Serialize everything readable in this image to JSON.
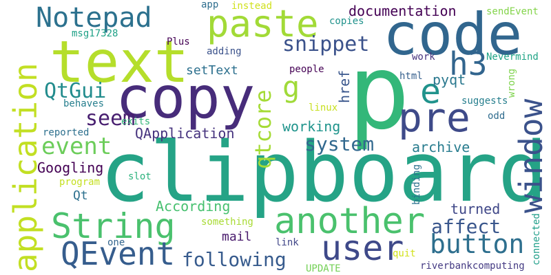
{
  "words": [
    {
      "text": "clipboard",
      "color": "#25a386"
    },
    {
      "text": "p",
      "color": "#33b779"
    },
    {
      "text": "code",
      "color": "#31668e"
    },
    {
      "text": "copy",
      "color": "#472c7a"
    },
    {
      "text": "text",
      "color": "#b5de2b"
    },
    {
      "text": "Notepad",
      "color": "#2c718e"
    },
    {
      "text": "paste",
      "color": "#a2da37"
    },
    {
      "text": "pre",
      "color": "#3e4a89"
    },
    {
      "text": "window",
      "color": "#3b528b"
    },
    {
      "text": "e",
      "color": "#20938c"
    },
    {
      "text": "application",
      "color": "#c2df23"
    },
    {
      "text": "String",
      "color": "#4ac16d"
    },
    {
      "text": "another",
      "color": "#4ac16d"
    },
    {
      "text": "user",
      "color": "#3e4989"
    },
    {
      "text": "button",
      "color": "#2e6f8e"
    },
    {
      "text": "QEvent",
      "color": "#365d8d"
    },
    {
      "text": "h3",
      "color": "#32658e"
    },
    {
      "text": "qtcore",
      "color": "#a5db36"
    },
    {
      "text": "g",
      "color": "#a0da39"
    },
    {
      "text": "snippet",
      "color": "#3b528b"
    },
    {
      "text": "event",
      "color": "#6ccd5a"
    },
    {
      "text": "seem",
      "color": "#481f70"
    },
    {
      "text": "QtGui",
      "color": "#228c8d"
    },
    {
      "text": "pyqt",
      "color": "#2a788e"
    },
    {
      "text": "setText",
      "color": "#2d708e"
    },
    {
      "text": "href",
      "color": "#39568c"
    },
    {
      "text": "system",
      "color": "#31688e"
    },
    {
      "text": "archive",
      "color": "#287c8e"
    },
    {
      "text": "working",
      "color": "#1f948c"
    },
    {
      "text": "QApplication",
      "color": "#46337e"
    },
    {
      "text": "documentation",
      "color": "#440154"
    },
    {
      "text": "following",
      "color": "#375b8d"
    },
    {
      "text": "affect",
      "color": "#39568c"
    },
    {
      "text": "turned",
      "color": "#3f4788"
    },
    {
      "text": "According",
      "color": "#46c06f"
    },
    {
      "text": "Googling",
      "color": "#440154"
    },
    {
      "text": "Qt",
      "color": "#2d708e"
    },
    {
      "text": "mail",
      "color": "#481a6c"
    },
    {
      "text": "link",
      "color": "#404688"
    },
    {
      "text": "people",
      "color": "#440154"
    },
    {
      "text": "html",
      "color": "#355f8d"
    },
    {
      "text": "adding",
      "color": "#3b528b"
    },
    {
      "text": "Plus",
      "color": "#440154"
    },
    {
      "text": "msg17328",
      "color": "#1fa187"
    },
    {
      "text": "app",
      "color": "#2e6e8e"
    },
    {
      "text": "instead",
      "color": "#d0e11c"
    },
    {
      "text": "copies",
      "color": "#20928c"
    },
    {
      "text": "sendEvent",
      "color": "#84d44b"
    },
    {
      "text": "work",
      "color": "#46337e"
    },
    {
      "text": "Nevermind",
      "color": "#20a486"
    },
    {
      "text": "wrong",
      "color": "#7fd34e"
    },
    {
      "text": "suggests",
      "color": "#277f8e"
    },
    {
      "text": "odd",
      "color": "#2f6c8e"
    },
    {
      "text": "linux",
      "color": "#c8e020"
    },
    {
      "text": "behaves",
      "color": "#277f8e"
    },
    {
      "text": "exits",
      "color": "#35b779"
    },
    {
      "text": "reported",
      "color": "#2d708e"
    },
    {
      "text": "program",
      "color": "#c5e021"
    },
    {
      "text": "slot",
      "color": "#2db27d"
    },
    {
      "text": "binding",
      "color": "#2c728e"
    },
    {
      "text": "connected",
      "color": "#1f9e89"
    },
    {
      "text": "something",
      "color": "#a8db34"
    },
    {
      "text": "one",
      "color": "#32658e"
    },
    {
      "text": "quit",
      "color": "#d2e21b"
    },
    {
      "text": "UPDATE",
      "color": "#73d056"
    },
    {
      "text": "riverbankcomputing",
      "color": "#443a83"
    }
  ]
}
